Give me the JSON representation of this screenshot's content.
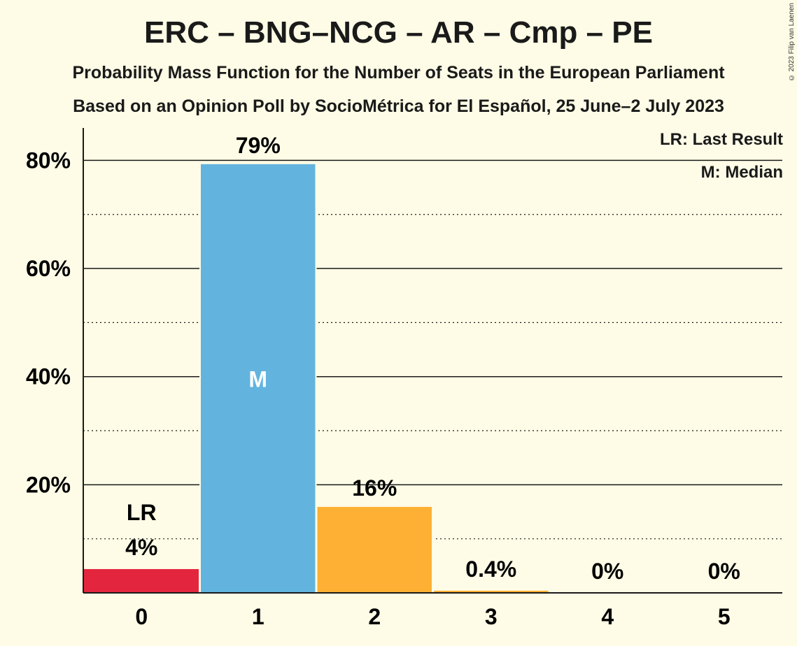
{
  "header": {
    "title": "ERC – BNG–NCG – AR – Cmp – PE",
    "subtitle1": "Probability Mass Function for the Number of Seats in the European Parliament",
    "subtitle2": "Based on an Opinion Poll by SocioMétrica for El Español, 25 June–2 July 2023",
    "copyright": "© 2023 Filip van Laenen"
  },
  "legend": {
    "last_result": "LR: Last Result",
    "median": "M: Median"
  },
  "chart_data": {
    "type": "bar",
    "categories": [
      "0",
      "1",
      "2",
      "3",
      "4",
      "5"
    ],
    "values": [
      4.4,
      79.3,
      15.9,
      0.4,
      0,
      0
    ],
    "data_labels": [
      "4%",
      "79%",
      "16%",
      "0.4%",
      "0%",
      "0%"
    ],
    "bar_colors": [
      "#e3263e",
      "#62b4df",
      "#fdb033",
      "#fdb033",
      "#fdb033",
      "#fdb033"
    ],
    "ylim": [
      0,
      86
    ],
    "yticks": [
      20,
      40,
      60,
      80
    ],
    "ytick_labels": [
      "20%",
      "40%",
      "60%",
      "80%"
    ],
    "minor_yticks": [
      10,
      30,
      50,
      70
    ],
    "last_result_index": 0,
    "last_result_label": "LR",
    "median_index": 1,
    "median_label": "M",
    "xlabel": "",
    "ylabel": ""
  }
}
